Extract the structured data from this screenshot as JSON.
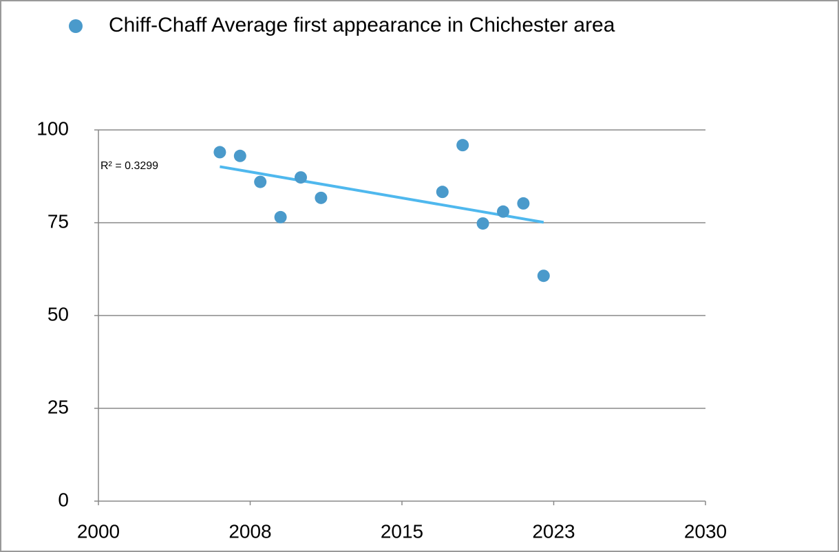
{
  "chart_data": {
    "type": "scatter",
    "series": [
      {
        "name": "Chiff-Chaff Average first appearance in Chichester area",
        "color": "#4a9acb",
        "x": [
          2006,
          2007,
          2008,
          2009,
          2010,
          2011,
          2017,
          2018,
          2019,
          2020,
          2021,
          2022
        ],
        "values": [
          94,
          93,
          86,
          76.5,
          87.2,
          81.7,
          83.3,
          95.9,
          74.8,
          78,
          80.2,
          60.7
        ]
      }
    ],
    "trendline": {
      "color": "#4fb8ee",
      "annotation": "R² = 0.3299"
    },
    "xlim": [
      2000,
      2030
    ],
    "xticks": [
      2000,
      {
        "value": 2007.5,
        "label": "2008"
      },
      2015,
      {
        "value": 2022.5,
        "label": "2023"
      },
      2030
    ],
    "ylim": [
      0,
      100
    ],
    "yticks": [
      0,
      25,
      50,
      75,
      100
    ],
    "grid": true
  }
}
